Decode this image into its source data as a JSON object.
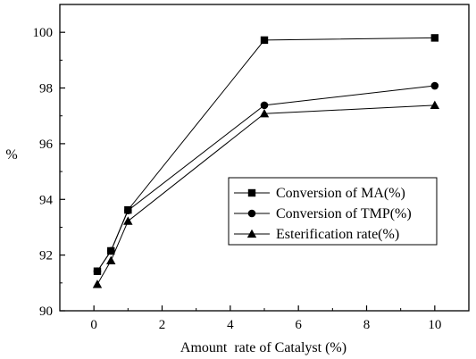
{
  "chart_data": {
    "type": "line",
    "xlabel": "Amount  rate of Catalyst (%)",
    "ylabel": "%",
    "xlim": [
      -1,
      11
    ],
    "ylim": [
      90,
      101
    ],
    "xticks": [
      "0",
      "2",
      "4",
      "6",
      "8",
      "10"
    ],
    "yticks": [
      "90",
      "92",
      "94",
      "96",
      "98",
      "100"
    ],
    "x": [
      0.1,
      0.5,
      1,
      5,
      10
    ],
    "series": [
      {
        "name": "Conversion of MA(%)",
        "marker": "square",
        "values": [
          91.42,
          92.15,
          93.62,
          99.72,
          99.8
        ]
      },
      {
        "name": "Conversion of TMP(%)",
        "marker": "circle",
        "values": [
          91.42,
          92.15,
          93.6,
          97.38,
          98.08
        ]
      },
      {
        "name": "Esterification rate(%)",
        "marker": "triangle",
        "values": [
          90.95,
          91.8,
          93.22,
          97.08,
          97.38
        ]
      }
    ],
    "legend_position": "lower-right",
    "grid": false,
    "line_color": "#000000"
  }
}
